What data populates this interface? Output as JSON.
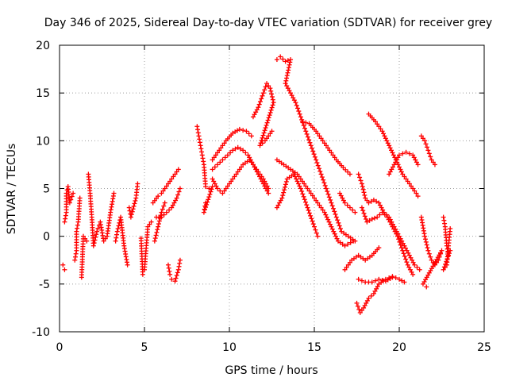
{
  "chart_data": {
    "type": "scatter",
    "title": "Day 346 of 2025, Sidereal Day-to-day VTEC variation (SDTVAR) for receiver grey",
    "xlabel": "GPS time / hours",
    "ylabel": "SDTVAR / TECUs",
    "xlim": [
      0,
      25
    ],
    "ylim": [
      -10,
      20
    ],
    "xticks": [
      "0",
      "5",
      "10",
      "15",
      "20",
      "25"
    ],
    "yticks": [
      "-10",
      "-5",
      "0",
      "5",
      "10",
      "15",
      "20"
    ],
    "grid": true,
    "marker": "+",
    "color": "#ff0000",
    "series": [
      {
        "name": "early-short-arcs",
        "points": [
          [
            0.2,
            -3.0
          ],
          [
            0.3,
            -3.5
          ],
          [
            0.3,
            1.5
          ],
          [
            0.4,
            2.5
          ],
          [
            0.4,
            4.5
          ],
          [
            0.5,
            5.2
          ],
          [
            0.6,
            3.5
          ],
          [
            0.8,
            4.5
          ],
          [
            0.9,
            -2.5
          ],
          [
            1.0,
            -1.5
          ],
          [
            1.0,
            0.5
          ],
          [
            1.1,
            1.5
          ],
          [
            1.2,
            4.0
          ],
          [
            1.3,
            -4.3
          ],
          [
            1.4,
            0.0
          ],
          [
            1.6,
            -0.5
          ],
          [
            1.7,
            6.5
          ],
          [
            1.8,
            4.5
          ],
          [
            1.9,
            2.0
          ],
          [
            2.0,
            -1.0
          ],
          [
            2.2,
            0.5
          ],
          [
            2.4,
            1.5
          ],
          [
            2.6,
            -0.5
          ],
          [
            2.8,
            0.0
          ],
          [
            3.0,
            2.5
          ],
          [
            3.2,
            4.5
          ],
          [
            3.3,
            -0.5
          ],
          [
            3.4,
            0.5
          ],
          [
            3.6,
            2.0
          ],
          [
            3.8,
            -1.0
          ],
          [
            4.0,
            -3.0
          ],
          [
            4.1,
            3.0
          ],
          [
            4.2,
            2.0
          ],
          [
            4.5,
            4.0
          ],
          [
            4.6,
            5.5
          ],
          [
            4.8,
            -0.2
          ],
          [
            4.9,
            -4.0
          ],
          [
            5.0,
            -3.5
          ],
          [
            5.2,
            1.0
          ],
          [
            5.4,
            1.5
          ]
        ]
      },
      {
        "name": "arc-6h-dip",
        "points": [
          [
            5.6,
            -0.5
          ],
          [
            5.8,
            1.0
          ],
          [
            6.0,
            2.5
          ],
          [
            6.2,
            3.5
          ],
          [
            6.4,
            -3.0
          ],
          [
            6.5,
            -4.0
          ],
          [
            6.6,
            -4.5
          ],
          [
            6.8,
            -4.7
          ],
          [
            7.0,
            -3.5
          ],
          [
            7.1,
            -2.5
          ]
        ]
      },
      {
        "name": "arc-6h-rise",
        "points": [
          [
            5.5,
            3.5
          ],
          [
            5.8,
            4.2
          ],
          [
            6.0,
            4.5
          ],
          [
            6.2,
            5.0
          ],
          [
            6.4,
            5.5
          ],
          [
            6.6,
            6.0
          ],
          [
            6.8,
            6.5
          ],
          [
            7.0,
            7.0
          ],
          [
            5.7,
            2.0
          ],
          [
            6.0,
            2.0
          ],
          [
            6.3,
            2.5
          ],
          [
            6.6,
            3.0
          ],
          [
            6.9,
            4.0
          ],
          [
            7.1,
            5.0
          ]
        ]
      },
      {
        "name": "arc-8h",
        "points": [
          [
            8.1,
            11.5
          ],
          [
            8.2,
            10.5
          ],
          [
            8.3,
            9.5
          ],
          [
            8.4,
            8.5
          ],
          [
            8.5,
            7.5
          ],
          [
            8.6,
            5.2
          ],
          [
            8.8,
            5.0
          ],
          [
            9.0,
            5.2
          ],
          [
            8.5,
            2.5
          ],
          [
            8.6,
            3.5
          ]
        ]
      },
      {
        "name": "arc-9h-hump",
        "points": [
          [
            9.0,
            7.0
          ],
          [
            9.3,
            7.5
          ],
          [
            9.6,
            8.0
          ],
          [
            9.9,
            8.5
          ],
          [
            10.2,
            9.0
          ],
          [
            10.5,
            9.3
          ],
          [
            10.8,
            9.0
          ],
          [
            11.1,
            8.5
          ],
          [
            11.4,
            7.5
          ],
          [
            11.7,
            6.5
          ],
          [
            12.0,
            5.5
          ],
          [
            12.3,
            4.5
          ]
        ]
      },
      {
        "name": "arc-9h-high",
        "points": [
          [
            9.0,
            8.0
          ],
          [
            9.4,
            9.0
          ],
          [
            9.8,
            10.0
          ],
          [
            10.2,
            10.8
          ],
          [
            10.6,
            11.2
          ],
          [
            11.0,
            11.0
          ],
          [
            11.3,
            10.5
          ]
        ]
      },
      {
        "name": "arc-9h-low",
        "points": [
          [
            9.0,
            6.0
          ],
          [
            9.3,
            5.0
          ],
          [
            9.6,
            4.5
          ],
          [
            10.0,
            5.5
          ],
          [
            10.4,
            6.5
          ],
          [
            10.8,
            7.5
          ],
          [
            11.2,
            8.0
          ],
          [
            11.6,
            7.0
          ],
          [
            12.0,
            6.0
          ],
          [
            12.3,
            5.0
          ]
        ]
      },
      {
        "name": "arc-11h-climb",
        "points": [
          [
            11.4,
            12.5
          ],
          [
            11.7,
            13.5
          ],
          [
            12.0,
            15.0
          ],
          [
            12.2,
            16.0
          ],
          [
            12.4,
            15.5
          ],
          [
            12.6,
            14.0
          ],
          [
            11.8,
            9.5
          ],
          [
            12.1,
            10.0
          ],
          [
            12.5,
            11.0
          ]
        ]
      },
      {
        "name": "arc-13h-peak",
        "points": [
          [
            12.8,
            18.5
          ],
          [
            13.0,
            18.8
          ],
          [
            13.3,
            18.3
          ],
          [
            13.6,
            18.5
          ],
          [
            13.3,
            16.0
          ],
          [
            13.6,
            15.0
          ],
          [
            13.9,
            14.0
          ],
          [
            14.2,
            12.5
          ],
          [
            14.5,
            11.0
          ],
          [
            14.8,
            9.5
          ],
          [
            15.1,
            8.0
          ],
          [
            15.4,
            6.5
          ],
          [
            15.7,
            5.0
          ],
          [
            16.0,
            3.5
          ],
          [
            16.3,
            2.0
          ],
          [
            16.6,
            0.5
          ],
          [
            17.0,
            0.0
          ],
          [
            17.4,
            -0.5
          ]
        ]
      },
      {
        "name": "arc-13h-mid",
        "points": [
          [
            12.8,
            8.0
          ],
          [
            13.2,
            7.5
          ],
          [
            13.6,
            7.0
          ],
          [
            14.0,
            6.5
          ],
          [
            14.4,
            5.5
          ],
          [
            14.8,
            4.5
          ],
          [
            15.2,
            3.5
          ],
          [
            15.6,
            2.5
          ],
          [
            16.0,
            1.0
          ],
          [
            16.4,
            -0.5
          ],
          [
            16.8,
            -1.0
          ],
          [
            17.3,
            -0.5
          ]
        ]
      },
      {
        "name": "arc-13h-low",
        "points": [
          [
            12.8,
            3.0
          ],
          [
            13.1,
            4.0
          ],
          [
            13.4,
            6.0
          ],
          [
            13.8,
            6.5
          ],
          [
            14.2,
            5.0
          ],
          [
            14.6,
            3.0
          ],
          [
            15.0,
            1.0
          ],
          [
            15.2,
            0.0
          ]
        ]
      },
      {
        "name": "arc-14h-long",
        "points": [
          [
            14.3,
            12.0
          ],
          [
            14.7,
            11.8
          ],
          [
            15.1,
            11.0
          ],
          [
            15.5,
            10.0
          ],
          [
            15.9,
            9.0
          ],
          [
            16.3,
            8.0
          ],
          [
            16.7,
            7.2
          ],
          [
            17.1,
            6.5
          ]
        ]
      },
      {
        "name": "arc-16h-short",
        "points": [
          [
            16.5,
            4.5
          ],
          [
            16.8,
            3.5
          ],
          [
            17.1,
            3.0
          ],
          [
            17.4,
            2.5
          ]
        ]
      },
      {
        "name": "arc-17h-low",
        "points": [
          [
            16.8,
            -3.5
          ],
          [
            17.2,
            -2.5
          ],
          [
            17.6,
            -2.0
          ],
          [
            18.0,
            -2.5
          ],
          [
            18.4,
            -2.0
          ],
          [
            18.8,
            -1.2
          ]
        ]
      },
      {
        "name": "arc-17h-dip",
        "points": [
          [
            17.5,
            -7.0
          ],
          [
            17.7,
            -8.0
          ],
          [
            17.9,
            -7.5
          ],
          [
            18.2,
            -6.5
          ],
          [
            18.5,
            -6.0
          ],
          [
            18.8,
            -5.0
          ],
          [
            19.2,
            -4.5
          ],
          [
            19.6,
            -4.2
          ],
          [
            20.0,
            -4.5
          ],
          [
            20.3,
            -4.8
          ]
        ]
      },
      {
        "name": "arc-17h-flat",
        "points": [
          [
            17.6,
            -4.5
          ],
          [
            18.0,
            -4.8
          ],
          [
            18.4,
            -4.8
          ],
          [
            18.8,
            -4.5
          ],
          [
            19.2,
            -4.7
          ],
          [
            19.6,
            -4.3
          ]
        ]
      },
      {
        "name": "arc-17h-wave",
        "points": [
          [
            17.6,
            6.5
          ],
          [
            17.8,
            5.5
          ],
          [
            18.0,
            4.0
          ],
          [
            18.2,
            3.5
          ],
          [
            18.5,
            3.8
          ],
          [
            18.8,
            3.5
          ],
          [
            19.1,
            2.5
          ],
          [
            19.4,
            2.0
          ],
          [
            19.7,
            1.0
          ],
          [
            20.0,
            0.0
          ],
          [
            20.3,
            -1.0
          ],
          [
            20.6,
            -2.0
          ],
          [
            20.9,
            -3.0
          ],
          [
            21.2,
            -3.5
          ]
        ]
      },
      {
        "name": "arc-17h-wave-low",
        "points": [
          [
            17.8,
            3.0
          ],
          [
            18.1,
            1.5
          ],
          [
            18.4,
            1.8
          ],
          [
            18.7,
            2.0
          ],
          [
            19.0,
            2.5
          ],
          [
            19.3,
            2.0
          ],
          [
            19.6,
            1.0
          ],
          [
            19.9,
            0.0
          ],
          [
            20.2,
            -1.5
          ],
          [
            20.5,
            -3.0
          ],
          [
            20.8,
            -4.0
          ]
        ]
      },
      {
        "name": "arc-18h-long",
        "points": [
          [
            18.2,
            12.8
          ],
          [
            18.6,
            12.0
          ],
          [
            19.0,
            11.0
          ],
          [
            19.4,
            9.5
          ],
          [
            19.8,
            8.0
          ],
          [
            20.2,
            6.5
          ],
          [
            20.6,
            5.5
          ],
          [
            21.0,
            4.5
          ],
          [
            21.1,
            4.2
          ]
        ]
      },
      {
        "name": "arc-19h-hump",
        "points": [
          [
            19.4,
            6.5
          ],
          [
            19.7,
            7.5
          ],
          [
            20.0,
            8.5
          ],
          [
            20.4,
            8.8
          ],
          [
            20.8,
            8.5
          ],
          [
            21.1,
            7.5
          ]
        ]
      },
      {
        "name": "arc-21h-tail",
        "points": [
          [
            21.3,
            10.5
          ],
          [
            21.5,
            10.0
          ],
          [
            21.7,
            9.0
          ],
          [
            21.9,
            8.0
          ],
          [
            22.1,
            7.5
          ],
          [
            21.3,
            2.0
          ],
          [
            21.5,
            0.0
          ],
          [
            21.7,
            -1.5
          ],
          [
            21.9,
            -2.5
          ],
          [
            22.1,
            -3.0
          ],
          [
            22.3,
            -2.5
          ],
          [
            22.5,
            -1.5
          ],
          [
            21.4,
            -5.0
          ],
          [
            21.6,
            -5.3
          ],
          [
            22.6,
            2.0
          ],
          [
            22.7,
            1.0
          ],
          [
            22.8,
            -1.0
          ],
          [
            22.9,
            -2.0
          ],
          [
            23.0,
            -1.5
          ],
          [
            22.6,
            -3.5
          ],
          [
            22.8,
            -3.0
          ],
          [
            22.9,
            -1.0
          ],
          [
            23.0,
            0.8
          ]
        ]
      }
    ]
  }
}
